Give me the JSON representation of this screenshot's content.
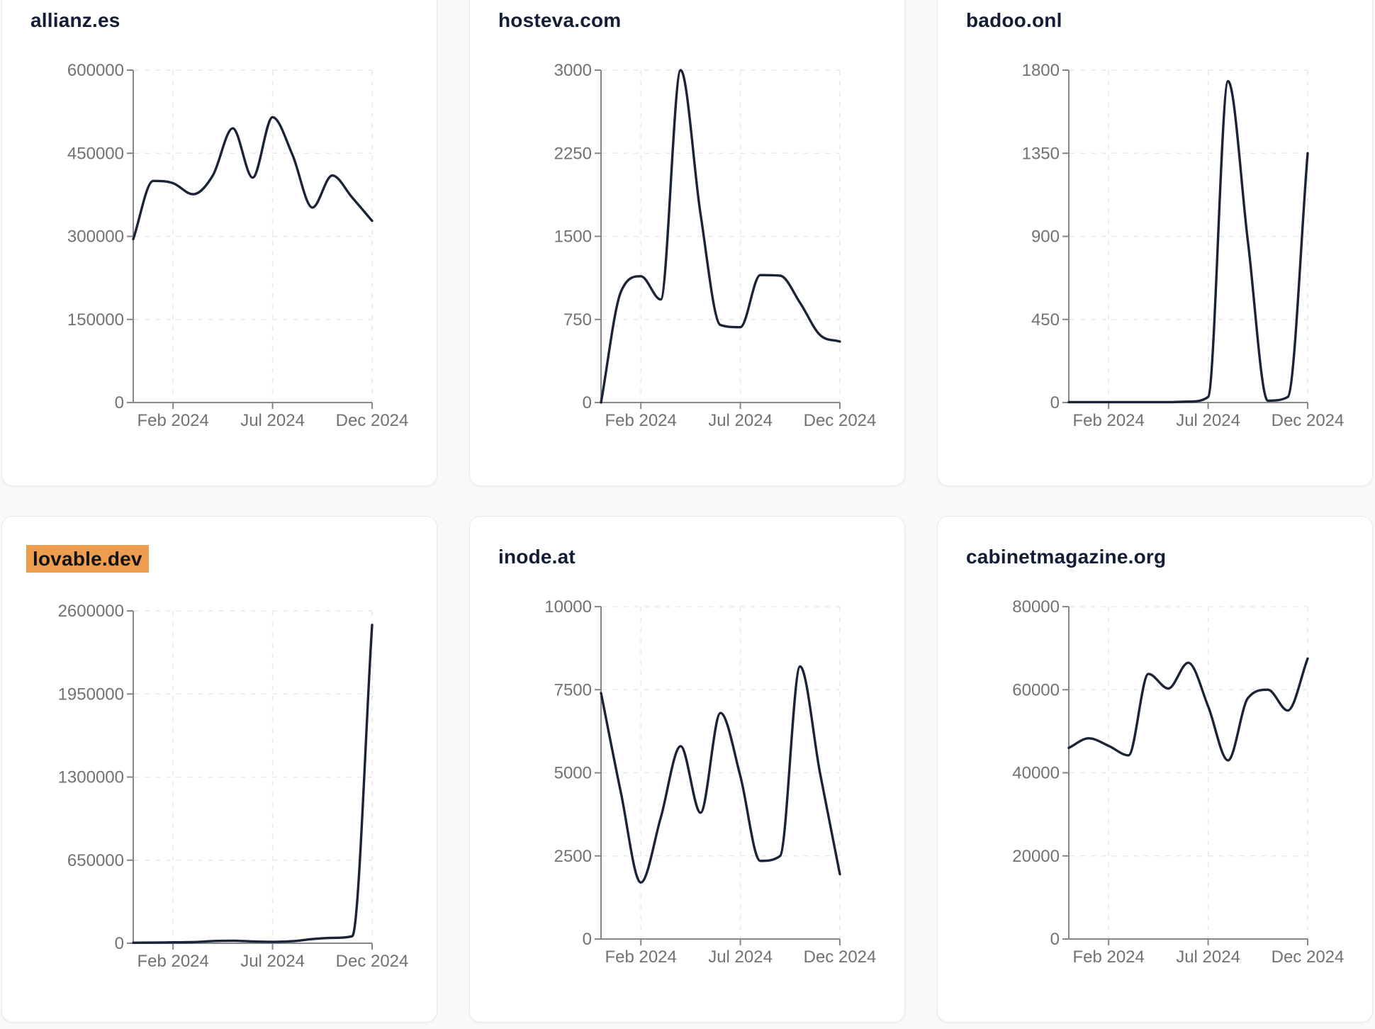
{
  "page": {
    "layout": "2x3 grid of line chart cards",
    "x_tick_labels": [
      "Feb 2024",
      "Jul 2024",
      "Dec 2024"
    ],
    "x_tick_month_index": [
      2,
      7,
      12
    ]
  },
  "colors": {
    "line": "#1b2337",
    "highlight_background": "#ee9c4d",
    "title": "#131d36",
    "axis": "#85858a",
    "tick_label": "#717176",
    "gridline": "#e9e9ec",
    "card_border": "#e9e9ee",
    "page_background": "#f9f9fb",
    "card_background": "#ffffff"
  },
  "chart_data": [
    {
      "type": "line",
      "title": "allianz.es",
      "highlighted": false,
      "x": [
        "Dec 2023",
        "Jan 2024",
        "Feb 2024",
        "Mar 2024",
        "Apr 2024",
        "May 2024",
        "Jun 2024",
        "Jul 2024",
        "Aug 2024",
        "Sep 2024",
        "Oct 2024",
        "Nov 2024",
        "Dec 2024"
      ],
      "values": [
        295000,
        400000,
        396000,
        376000,
        410000,
        495000,
        406000,
        515000,
        447000,
        352000,
        410000,
        370000,
        328000
      ],
      "y_ticks": [
        0,
        150000,
        300000,
        450000,
        600000
      ],
      "ylim": [
        0,
        600000
      ],
      "x_tick_labels": [
        "Feb 2024",
        "Jul 2024",
        "Dec 2024"
      ],
      "grid": "dashed"
    },
    {
      "type": "line",
      "title": "hosteva.com",
      "highlighted": false,
      "x": [
        "Dec 2023",
        "Jan 2024",
        "Feb 2024",
        "Mar 2024",
        "Apr 2024",
        "May 2024",
        "Jun 2024",
        "Jul 2024",
        "Aug 2024",
        "Sep 2024",
        "Oct 2024",
        "Nov 2024",
        "Dec 2024"
      ],
      "values": [
        0,
        1000,
        1140,
        930,
        3000,
        1700,
        700,
        680,
        1150,
        1145,
        900,
        610,
        550
      ],
      "y_ticks": [
        0,
        750,
        1500,
        2250,
        3000
      ],
      "ylim": [
        0,
        3000
      ],
      "x_tick_labels": [
        "Feb 2024",
        "Jul 2024",
        "Dec 2024"
      ],
      "grid": "dashed"
    },
    {
      "type": "line",
      "title": "badoo.onl",
      "highlighted": false,
      "x": [
        "Dec 2023",
        "Jan 2024",
        "Feb 2024",
        "Mar 2024",
        "Apr 2024",
        "May 2024",
        "Jun 2024",
        "Jul 2024",
        "Aug 2024",
        "Sep 2024",
        "Oct 2024",
        "Nov 2024",
        "Dec 2024"
      ],
      "values": [
        2,
        2,
        2,
        2,
        2,
        2,
        5,
        30,
        1740,
        870,
        10,
        30,
        1350
      ],
      "y_ticks": [
        0,
        450,
        900,
        1350,
        1800
      ],
      "ylim": [
        0,
        1800
      ],
      "x_tick_labels": [
        "Feb 2024",
        "Jul 2024",
        "Dec 2024"
      ],
      "grid": "dashed"
    },
    {
      "type": "line",
      "title": "lovable.dev",
      "highlighted": true,
      "x": [
        "Dec 2023",
        "Jan 2024",
        "Feb 2024",
        "Mar 2024",
        "Apr 2024",
        "May 2024",
        "Jun 2024",
        "Jul 2024",
        "Aug 2024",
        "Sep 2024",
        "Oct 2024",
        "Nov 2024",
        "Dec 2024"
      ],
      "values": [
        4000,
        5000,
        7000,
        9000,
        17000,
        20000,
        14000,
        11000,
        16000,
        33000,
        42000,
        55000,
        2490000
      ],
      "y_ticks": [
        0,
        650000,
        1300000,
        1950000,
        2600000
      ],
      "ylim": [
        0,
        2600000
      ],
      "x_tick_labels": [
        "Feb 2024",
        "Jul 2024",
        "Dec 2024"
      ],
      "grid": "dashed"
    },
    {
      "type": "line",
      "title": "inode.at",
      "highlighted": false,
      "x": [
        "Dec 2023",
        "Jan 2024",
        "Feb 2024",
        "Mar 2024",
        "Apr 2024",
        "May 2024",
        "Jun 2024",
        "Jul 2024",
        "Aug 2024",
        "Sep 2024",
        "Oct 2024",
        "Nov 2024",
        "Dec 2024"
      ],
      "values": [
        7400,
        4400,
        1700,
        3650,
        5800,
        3800,
        6800,
        4900,
        2350,
        2500,
        8200,
        5000,
        1950
      ],
      "y_ticks": [
        0,
        2500,
        5000,
        7500,
        10000
      ],
      "ylim": [
        0,
        10000
      ],
      "x_tick_labels": [
        "Feb 2024",
        "Jul 2024",
        "Dec 2024"
      ],
      "grid": "dashed"
    },
    {
      "type": "line",
      "title": "cabinetmagazine.org",
      "highlighted": false,
      "x": [
        "Dec 2023",
        "Jan 2024",
        "Feb 2024",
        "Mar 2024",
        "Apr 2024",
        "May 2024",
        "Jun 2024",
        "Jul 2024",
        "Aug 2024",
        "Sep 2024",
        "Oct 2024",
        "Nov 2024",
        "Dec 2024"
      ],
      "values": [
        46000,
        48300,
        46500,
        44200,
        63800,
        60300,
        66500,
        56000,
        43000,
        58000,
        60000,
        55000,
        67500
      ],
      "y_ticks": [
        0,
        20000,
        40000,
        60000,
        80000
      ],
      "ylim": [
        0,
        80000
      ],
      "x_tick_labels": [
        "Feb 2024",
        "Jul 2024",
        "Dec 2024"
      ],
      "grid": "dashed"
    }
  ]
}
